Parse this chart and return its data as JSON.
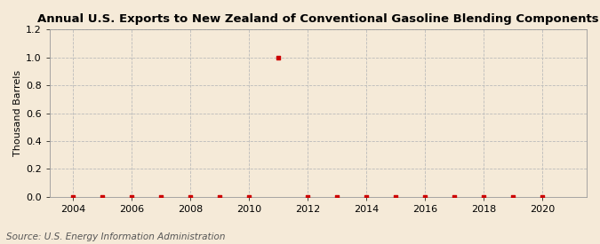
{
  "title": "Annual U.S. Exports to New Zealand of Conventional Gasoline Blending Components",
  "ylabel": "Thousand Barrels",
  "source": "Source: U.S. Energy Information Administration",
  "background_color": "#f5ead8",
  "plot_background_color": "#f5ead8",
  "xlim": [
    2003.2,
    2021.5
  ],
  "ylim": [
    0.0,
    1.2
  ],
  "yticks": [
    0.0,
    0.2,
    0.4,
    0.6,
    0.8,
    1.0,
    1.2
  ],
  "xticks": [
    2004,
    2006,
    2008,
    2010,
    2012,
    2014,
    2016,
    2018,
    2020
  ],
  "data_x": [
    2004,
    2005,
    2006,
    2007,
    2008,
    2009,
    2010,
    2011,
    2012,
    2013,
    2014,
    2015,
    2016,
    2017,
    2018,
    2019,
    2020
  ],
  "data_y": [
    0.0,
    0.0,
    0.0,
    0.0,
    0.0,
    0.0,
    0.0,
    1.0,
    0.0,
    0.0,
    0.0,
    0.0,
    0.0,
    0.0,
    0.0,
    0.0,
    0.0
  ],
  "marker_color": "#cc0000",
  "marker_style": "s",
  "marker_size": 3,
  "title_fontsize": 9.5,
  "label_fontsize": 8,
  "tick_fontsize": 8,
  "source_fontsize": 7.5,
  "grid_color": "#bbbbbb",
  "grid_linestyle": "--",
  "grid_linewidth": 0.6,
  "line_color": "#cc0000",
  "line_width": 0.0
}
